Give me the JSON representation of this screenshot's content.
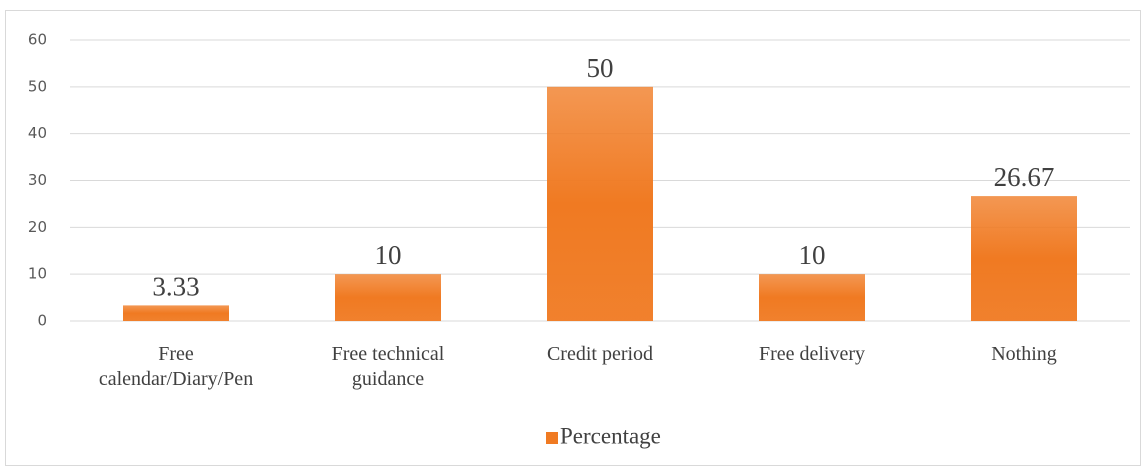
{
  "chart_data": {
    "type": "bar",
    "categories": [
      "Free calendar/Diary/Pen",
      "Free technical guidance",
      "Credit period",
      "Free delivery",
      "Nothing"
    ],
    "series": [
      {
        "name": "Percentage",
        "color": "#f07a22",
        "values": [
          3.33,
          10,
          50,
          10,
          26.67
        ]
      }
    ],
    "ylim": [
      0,
      60
    ],
    "yticks": [
      0,
      10,
      20,
      30,
      40,
      50,
      60
    ],
    "grid": true,
    "legend": "bottom"
  }
}
